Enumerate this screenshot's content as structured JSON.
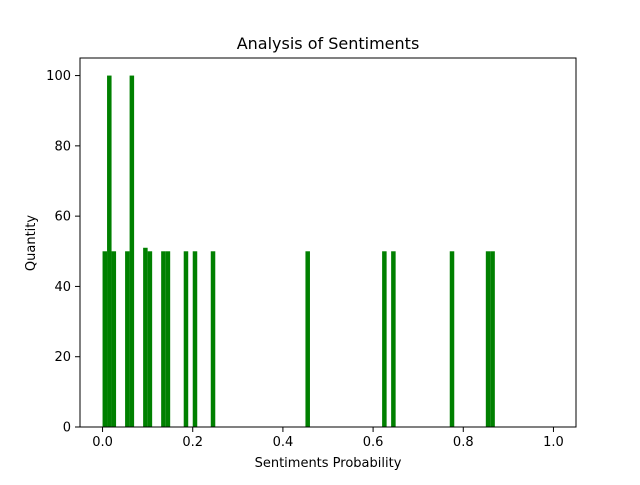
{
  "chart_data": {
    "type": "bar",
    "title": "Analysis of Sentiments",
    "xlabel": "Sentiments Probability",
    "ylabel": "Quantity",
    "xlim": [
      -0.05,
      1.05
    ],
    "ylim": [
      0,
      105
    ],
    "xticks": [
      0.0,
      0.2,
      0.4,
      0.6,
      0.8,
      1.0
    ],
    "xtick_labels": [
      "0.0",
      "0.2",
      "0.4",
      "0.6",
      "0.8",
      "1.0"
    ],
    "yticks": [
      0,
      20,
      40,
      60,
      80,
      100
    ],
    "ytick_labels": [
      "0",
      "20",
      "40",
      "60",
      "80",
      "100"
    ],
    "bin_width": 0.01,
    "bar_color": "#008000",
    "bins": [
      {
        "x": 0.0,
        "value": 50
      },
      {
        "x": 0.01,
        "value": 100
      },
      {
        "x": 0.02,
        "value": 50
      },
      {
        "x": 0.05,
        "value": 50
      },
      {
        "x": 0.06,
        "value": 100
      },
      {
        "x": 0.09,
        "value": 51
      },
      {
        "x": 0.1,
        "value": 50
      },
      {
        "x": 0.13,
        "value": 50
      },
      {
        "x": 0.14,
        "value": 50
      },
      {
        "x": 0.18,
        "value": 50
      },
      {
        "x": 0.2,
        "value": 50
      },
      {
        "x": 0.24,
        "value": 50
      },
      {
        "x": 0.45,
        "value": 50
      },
      {
        "x": 0.62,
        "value": 50
      },
      {
        "x": 0.64,
        "value": 50
      },
      {
        "x": 0.77,
        "value": 50
      },
      {
        "x": 0.85,
        "value": 50
      },
      {
        "x": 0.86,
        "value": 50
      }
    ],
    "grid": false,
    "legend": false
  }
}
